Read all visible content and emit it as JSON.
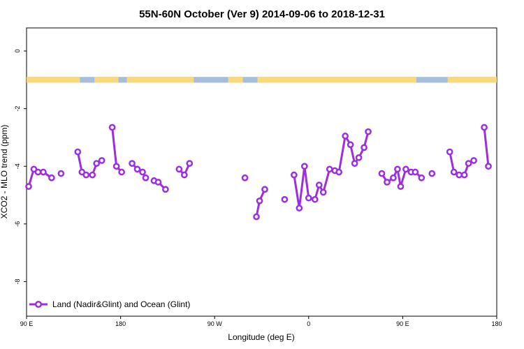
{
  "chart_data": {
    "type": "line",
    "title": "55N-60N October (Ver 9)   2014-09-06 to 2018-12-31",
    "xlabel": "Longitude (deg E)",
    "ylabel": "XCO2 - MLO trend (ppm)",
    "xlim": [
      90,
      540
    ],
    "ylim": [
      -9.2,
      0.8
    ],
    "xticks": [
      {
        "value": 90,
        "label": "90 E"
      },
      {
        "value": 180,
        "label": "180"
      },
      {
        "value": 270,
        "label": "90 W"
      },
      {
        "value": 360,
        "label": "0"
      },
      {
        "value": 450,
        "label": "90 E"
      },
      {
        "value": 540,
        "label": "180"
      }
    ],
    "yticks": [
      {
        "value": 0,
        "label": "0"
      },
      {
        "value": -2,
        "label": "-2"
      },
      {
        "value": -4,
        "label": "-4"
      },
      {
        "value": -6,
        "label": "-6"
      },
      {
        "value": -8,
        "label": "-8"
      }
    ],
    "grid": false,
    "legend_position": "bottom-left",
    "colors": {
      "series": "#9b2fe0",
      "land": "#f9d97c",
      "ocean": "#a5bedc"
    },
    "land_ocean_strip": {
      "y_range": [
        -0.9,
        -1.1
      ],
      "land_intervals": [
        [
          90,
          141
        ],
        [
          155,
          178
        ],
        [
          186,
          250
        ],
        [
          283,
          297
        ],
        [
          311,
          463
        ],
        [
          493,
          540
        ]
      ]
    },
    "series": [
      {
        "name": "Land (Nadir&Glint) and Ocean (Glint)",
        "segments": [
          [
            [
              92,
              -4.7
            ],
            [
              97,
              -4.1
            ],
            [
              101,
              -4.2
            ],
            [
              106,
              -4.2
            ],
            [
              114,
              -4.4
            ]
          ],
          [
            [
              123,
              -4.25
            ]
          ],
          [
            [
              139,
              -3.5
            ],
            [
              143,
              -4.2
            ],
            [
              147,
              -4.3
            ],
            [
              153,
              -4.3
            ],
            [
              157,
              -3.9
            ],
            [
              162,
              -3.8
            ]
          ],
          [
            [
              172,
              -2.65
            ],
            [
              176,
              -4.0
            ],
            [
              181,
              -4.2
            ]
          ],
          [
            [
              191,
              -3.9
            ],
            [
              196,
              -4.1
            ],
            [
              201,
              -4.2
            ],
            [
              204,
              -4.4
            ]
          ],
          [
            [
              212,
              -4.5
            ],
            [
              216,
              -4.55
            ],
            [
              223,
              -4.8
            ]
          ],
          [
            [
              236,
              -4.1
            ],
            [
              241,
              -4.3
            ],
            [
              246,
              -3.9
            ]
          ],
          [
            [
              299,
              -4.4
            ]
          ],
          [
            [
              310,
              -5.75
            ],
            [
              313,
              -5.2
            ],
            [
              318,
              -4.8
            ]
          ],
          [
            [
              337,
              -5.15
            ]
          ],
          [
            [
              346,
              -4.3
            ],
            [
              351,
              -5.45
            ],
            [
              356,
              -4.0
            ],
            [
              360,
              -5.1
            ],
            [
              366,
              -5.15
            ],
            [
              370,
              -4.65
            ],
            [
              374,
              -4.9
            ],
            [
              380,
              -4.1
            ],
            [
              385,
              -4.15
            ],
            [
              389,
              -4.2
            ],
            [
              395,
              -2.95
            ],
            [
              400,
              -3.25
            ],
            [
              404,
              -3.9
            ],
            [
              408,
              -3.7
            ],
            [
              413,
              -3.35
            ],
            [
              417,
              -2.8
            ]
          ],
          [
            [
              430,
              -4.25
            ],
            [
              435,
              -4.55
            ],
            [
              441,
              -4.4
            ],
            [
              445,
              -4.1
            ],
            [
              448,
              -4.7
            ],
            [
              453,
              -4.1
            ],
            [
              458,
              -4.2
            ],
            [
              462,
              -4.2
            ],
            [
              468,
              -4.4
            ]
          ],
          [
            [
              478,
              -4.25
            ]
          ],
          [
            [
              495,
              -3.5
            ],
            [
              499,
              -4.2
            ],
            [
              504,
              -4.3
            ],
            [
              509,
              -4.3
            ],
            [
              513,
              -3.9
            ],
            [
              518,
              -3.8
            ]
          ],
          [
            [
              528,
              -2.65
            ],
            [
              532,
              -4.0
            ]
          ]
        ]
      }
    ]
  }
}
